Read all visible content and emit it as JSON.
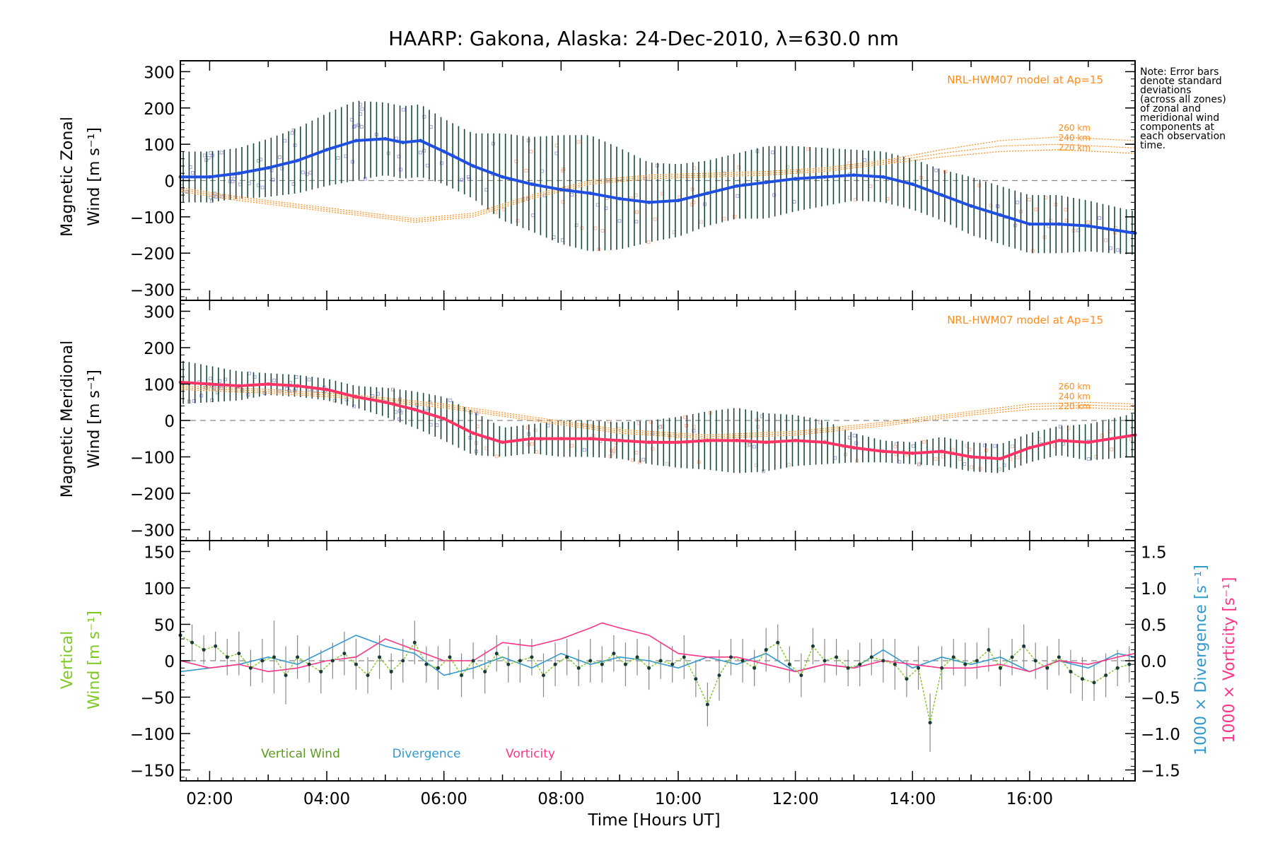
{
  "title": "HAARP: Gakona,  Alaska: 24-Dec-2010, λ=630.0 nm",
  "note_lines": [
    "Note: Error bars",
    "denote standard",
    "deviations",
    "(across all zones)",
    "of zonal and",
    "meridional wind",
    "components at",
    "each observation",
    "time."
  ],
  "colors": {
    "zonal": "#1f4fe0",
    "meridional": "#ff3366",
    "vertical": "#5a9a1a",
    "divergence": "#3399cc",
    "vorticity": "#ff3388",
    "model": "#ff8c1a",
    "errorbar": "#1a4a3a",
    "scatter_purple": "#a7a0dd",
    "scatter_salmon": "#ffb6a0"
  },
  "chart_data": [
    {
      "type": "line",
      "panel": "zonal",
      "ylabel_line1": "Magnetic Zonal",
      "ylabel_line2": "Wind [m s⁻¹]",
      "ylim": [
        -330,
        330
      ],
      "yticks": [
        "300",
        "200",
        "100",
        "0",
        "−100",
        "−200",
        "−300"
      ],
      "ytick_values": [
        300,
        200,
        100,
        0,
        -100,
        -200,
        -300
      ],
      "xlim": [
        1.5,
        17.8
      ],
      "model_label": "NRL-HWM07 model at Ap=15",
      "model_series": [
        {
          "name": "260 km",
          "x": [
            1.5,
            2.5,
            3.5,
            4.5,
            5.5,
            6.5,
            7.5,
            8.5,
            9.5,
            10.5,
            11.5,
            12.5,
            13.5,
            14.5,
            15.5,
            16.5,
            17.8
          ],
          "values": [
            -20,
            -45,
            -65,
            -85,
            -105,
            -90,
            -40,
            0,
            15,
            20,
            25,
            35,
            55,
            85,
            110,
            120,
            110
          ]
        },
        {
          "name": "240 km",
          "x": [
            1.5,
            2.5,
            3.5,
            4.5,
            5.5,
            6.5,
            7.5,
            8.5,
            9.5,
            10.5,
            11.5,
            12.5,
            13.5,
            14.5,
            15.5,
            16.5,
            17.8
          ],
          "values": [
            -25,
            -50,
            -70,
            -90,
            -110,
            -95,
            -45,
            -5,
            10,
            15,
            20,
            30,
            50,
            75,
            95,
            100,
            90
          ]
        },
        {
          "name": "220 km",
          "x": [
            1.5,
            2.5,
            3.5,
            4.5,
            5.5,
            6.5,
            7.5,
            8.5,
            9.5,
            10.5,
            11.5,
            12.5,
            13.5,
            14.5,
            15.5,
            16.5,
            17.8
          ],
          "values": [
            -30,
            -55,
            -75,
            -95,
            -115,
            -100,
            -50,
            -10,
            5,
            10,
            15,
            25,
            45,
            65,
            80,
            85,
            75
          ]
        }
      ],
      "series": [
        {
          "name": "Zonal wind",
          "x": [
            1.5,
            2.0,
            2.5,
            3.0,
            3.5,
            4.0,
            4.5,
            5.0,
            5.3,
            5.6,
            6.0,
            6.5,
            7.0,
            7.5,
            8.0,
            8.5,
            9.0,
            9.5,
            10.0,
            10.5,
            11.0,
            11.5,
            12.0,
            12.5,
            13.0,
            13.5,
            14.0,
            14.5,
            15.0,
            15.5,
            16.0,
            16.5,
            17.0,
            17.8
          ],
          "values": [
            10,
            10,
            20,
            35,
            55,
            85,
            110,
            115,
            105,
            110,
            80,
            40,
            10,
            -10,
            -25,
            -35,
            -50,
            -60,
            -55,
            -35,
            -15,
            -5,
            5,
            10,
            15,
            10,
            -10,
            -40,
            -70,
            -95,
            -120,
            -120,
            -125,
            -145
          ],
          "errors": [
            70,
            70,
            70,
            80,
            90,
            100,
            110,
            100,
            100,
            100,
            90,
            90,
            120,
            130,
            150,
            160,
            140,
            110,
            100,
            90,
            90,
            100,
            90,
            80,
            70,
            70,
            70,
            70,
            80,
            80,
            80,
            80,
            70,
            60
          ]
        }
      ]
    },
    {
      "type": "line",
      "panel": "meridional",
      "ylabel_line1": "Magnetic Meridional",
      "ylabel_line2": "Wind [m s⁻¹]",
      "ylim": [
        -330,
        330
      ],
      "yticks": [
        "300",
        "200",
        "100",
        "0",
        "−100",
        "−200",
        "−300"
      ],
      "ytick_values": [
        300,
        200,
        100,
        0,
        -100,
        -200,
        -300
      ],
      "xlim": [
        1.5,
        17.8
      ],
      "model_label": "NRL-HWM07 model at Ap=15",
      "model_series": [
        {
          "name": "260 km",
          "x": [
            1.5,
            3.0,
            4.5,
            6.0,
            7.5,
            9.0,
            10.5,
            12.0,
            13.5,
            15.0,
            16.0,
            17.0,
            17.8
          ],
          "values": [
            95,
            85,
            70,
            45,
            10,
            -25,
            -40,
            -30,
            -5,
            25,
            45,
            50,
            45
          ]
        },
        {
          "name": "240 km",
          "x": [
            1.5,
            3.0,
            4.5,
            6.0,
            7.5,
            9.0,
            10.5,
            12.0,
            13.5,
            15.0,
            16.0,
            17.0,
            17.8
          ],
          "values": [
            90,
            80,
            65,
            40,
            5,
            -30,
            -45,
            -35,
            -10,
            20,
            38,
            42,
            38
          ]
        },
        {
          "name": "220 km",
          "x": [
            1.5,
            3.0,
            4.5,
            6.0,
            7.5,
            9.0,
            10.5,
            12.0,
            13.5,
            15.0,
            16.0,
            17.0,
            17.8
          ],
          "values": [
            85,
            75,
            60,
            35,
            0,
            -35,
            -50,
            -40,
            -15,
            15,
            30,
            35,
            30
          ]
        }
      ],
      "series": [
        {
          "name": "Meridional wind",
          "x": [
            1.5,
            2.0,
            2.5,
            3.0,
            3.5,
            4.0,
            4.5,
            5.0,
            5.5,
            6.0,
            6.5,
            7.0,
            7.5,
            8.0,
            8.5,
            9.0,
            9.5,
            10.0,
            10.5,
            11.0,
            11.5,
            12.0,
            12.5,
            13.0,
            13.5,
            14.0,
            14.5,
            15.0,
            15.5,
            16.0,
            16.5,
            17.0,
            17.8
          ],
          "values": [
            105,
            100,
            95,
            100,
            95,
            85,
            65,
            50,
            30,
            5,
            -35,
            -60,
            -50,
            -50,
            -50,
            -55,
            -60,
            -60,
            -55,
            -55,
            -60,
            -55,
            -60,
            -75,
            -85,
            -90,
            -85,
            -100,
            -105,
            -75,
            -55,
            -60,
            -40
          ],
          "errors": [
            60,
            50,
            40,
            30,
            30,
            30,
            30,
            40,
            50,
            60,
            60,
            40,
            40,
            50,
            50,
            50,
            60,
            70,
            80,
            90,
            80,
            70,
            60,
            40,
            30,
            30,
            40,
            40,
            40,
            40,
            40,
            50,
            60
          ]
        }
      ]
    },
    {
      "type": "line",
      "panel": "vertical",
      "ylabel_line1": "Vertical",
      "ylabel_line2": "Wind [m s⁻¹]",
      "ylim": [
        -165,
        165
      ],
      "yticks": [
        "150",
        "100",
        "50",
        "0",
        "−50",
        "−100",
        "−150"
      ],
      "ytick_values": [
        150,
        100,
        50,
        0,
        -50,
        -100,
        -150
      ],
      "y2label_div": "1000 × Divergence [s⁻¹]",
      "y2label_vort": "1000 × Vorticity [s⁻¹]",
      "y2lim": [
        -1.65,
        1.65
      ],
      "y2ticks": [
        "1.5",
        "1.0",
        "0.5",
        "0.0",
        "−0.5",
        "−1.0",
        "−1.5"
      ],
      "y2tick_values": [
        1.5,
        1.0,
        0.5,
        0.0,
        -0.5,
        -1.0,
        -1.5
      ],
      "xlabel": "Time [Hours UT]",
      "xticks": [
        "02:00",
        "04:00",
        "06:00",
        "08:00",
        "10:00",
        "12:00",
        "14:00",
        "16:00"
      ],
      "xtick_values": [
        2,
        4,
        6,
        8,
        10,
        12,
        14,
        16
      ],
      "xlim": [
        1.5,
        17.8
      ],
      "legend": [
        "Vertical Wind",
        "Divergence",
        "Vorticity"
      ],
      "series": [
        {
          "name": "Vertical Wind",
          "x": [
            1.5,
            1.7,
            1.9,
            2.1,
            2.3,
            2.5,
            2.7,
            2.9,
            3.1,
            3.3,
            3.5,
            3.7,
            3.9,
            4.1,
            4.3,
            4.5,
            4.7,
            4.9,
            5.1,
            5.3,
            5.5,
            5.7,
            5.9,
            6.1,
            6.3,
            6.5,
            6.7,
            6.9,
            7.1,
            7.3,
            7.5,
            7.7,
            7.9,
            8.1,
            8.3,
            8.5,
            8.7,
            8.9,
            9.1,
            9.3,
            9.5,
            9.7,
            9.9,
            10.1,
            10.3,
            10.5,
            10.7,
            10.9,
            11.1,
            11.3,
            11.5,
            11.7,
            11.9,
            12.1,
            12.3,
            12.5,
            12.7,
            12.9,
            13.1,
            13.3,
            13.5,
            13.7,
            13.9,
            14.1,
            14.3,
            14.5,
            14.7,
            14.9,
            15.1,
            15.3,
            15.5,
            15.7,
            15.9,
            16.1,
            16.3,
            16.5,
            16.7,
            16.9,
            17.1,
            17.3,
            17.5,
            17.7
          ],
          "values": [
            35,
            25,
            15,
            20,
            5,
            10,
            -10,
            0,
            5,
            -20,
            5,
            -5,
            -15,
            0,
            10,
            -5,
            -20,
            5,
            -15,
            0,
            25,
            -5,
            -10,
            5,
            -20,
            0,
            -15,
            10,
            -5,
            0,
            5,
            -20,
            -5,
            5,
            -10,
            0,
            -5,
            10,
            -5,
            5,
            -10,
            0,
            -5,
            5,
            -25,
            -60,
            -20,
            5,
            0,
            -10,
            15,
            25,
            -5,
            -20,
            20,
            0,
            5,
            -10,
            -5,
            5,
            0,
            -5,
            -25,
            -10,
            -85,
            -10,
            5,
            -5,
            0,
            15,
            -10,
            5,
            20,
            0,
            -10,
            5,
            -15,
            -25,
            -30,
            -20,
            -10,
            -5
          ],
          "errors": [
            20,
            25,
            20,
            20,
            25,
            30,
            25,
            30,
            50,
            40,
            30,
            25,
            30,
            25,
            30,
            35,
            25,
            30,
            25,
            30,
            30,
            25,
            30,
            25,
            30,
            25,
            30,
            25,
            25,
            30,
            25,
            30,
            30,
            25,
            25,
            30,
            25,
            25,
            30,
            25,
            30,
            25,
            25,
            30,
            25,
            30,
            35,
            25,
            30,
            25,
            30,
            25,
            25,
            30,
            25,
            30,
            25,
            25,
            30,
            25,
            30,
            35,
            25,
            30,
            40,
            30,
            25,
            30,
            25,
            30,
            25,
            25,
            30,
            25,
            30,
            25,
            30,
            30,
            25,
            30,
            25,
            25
          ]
        },
        {
          "name": "Divergence",
          "x": [
            1.5,
            2.0,
            2.5,
            3.0,
            3.5,
            4.0,
            4.5,
            5.0,
            5.5,
            6.0,
            6.5,
            7.0,
            7.5,
            8.0,
            8.5,
            9.0,
            9.5,
            10.0,
            10.5,
            11.0,
            11.5,
            12.0,
            12.5,
            13.0,
            13.5,
            14.0,
            14.5,
            15.0,
            15.5,
            16.0,
            16.5,
            17.0,
            17.5,
            17.8
          ],
          "values": [
            -0.15,
            -0.1,
            -0.05,
            0.05,
            -0.05,
            0.15,
            0.35,
            0.2,
            0.1,
            -0.2,
            -0.1,
            0.05,
            -0.1,
            0.1,
            -0.05,
            0.05,
            0.0,
            -0.1,
            0.05,
            -0.05,
            0.1,
            -0.15,
            -0.05,
            -0.1,
            0.15,
            -0.1,
            0.05,
            -0.05,
            0.05,
            -0.15,
            0.0,
            -0.1,
            0.1,
            0.05
          ]
        },
        {
          "name": "Vorticity",
          "x": [
            1.5,
            2.0,
            2.5,
            3.0,
            3.5,
            4.0,
            4.5,
            5.0,
            5.5,
            6.0,
            6.5,
            7.0,
            7.5,
            8.0,
            8.5,
            8.7,
            9.0,
            9.5,
            10.0,
            10.5,
            11.0,
            11.5,
            12.0,
            12.5,
            13.0,
            13.5,
            14.0,
            14.5,
            15.0,
            15.5,
            16.0,
            16.5,
            17.0,
            17.5,
            17.8
          ],
          "values": [
            0.0,
            -0.1,
            -0.05,
            -0.15,
            -0.1,
            0.0,
            0.05,
            0.3,
            0.15,
            0.0,
            0.0,
            0.25,
            0.2,
            0.3,
            0.45,
            0.52,
            0.45,
            0.35,
            0.1,
            0.05,
            0.05,
            -0.05,
            -0.15,
            -0.05,
            -0.1,
            0.0,
            -0.05,
            -0.1,
            -0.1,
            -0.05,
            -0.15,
            0.0,
            -0.05,
            0.05,
            0.1
          ]
        }
      ]
    }
  ]
}
